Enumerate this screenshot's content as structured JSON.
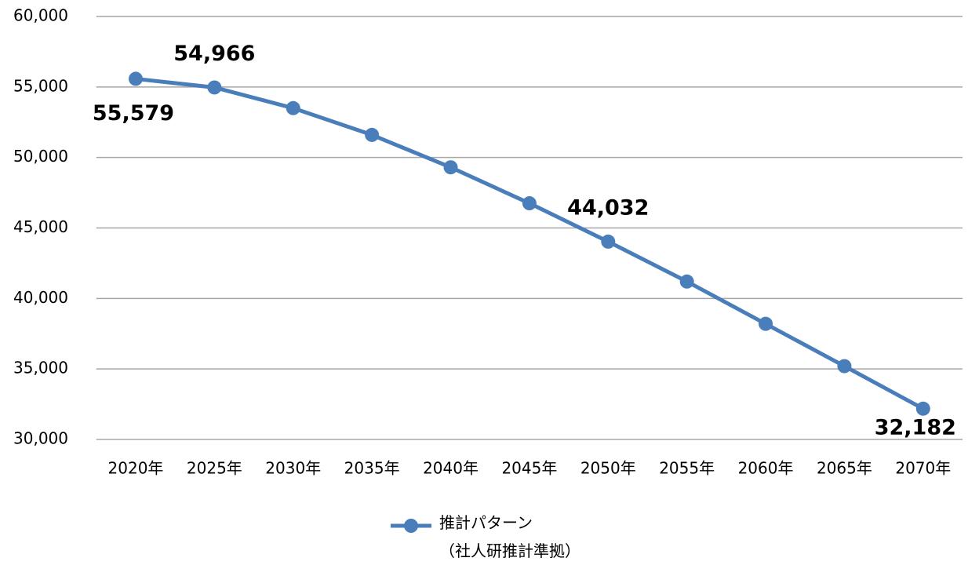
{
  "chart_data": {
    "type": "line",
    "categories": [
      "2020年",
      "2025年",
      "2030年",
      "2035年",
      "2040年",
      "2045年",
      "2050年",
      "2055年",
      "2060年",
      "2065年",
      "2070年"
    ],
    "series": [
      {
        "name": "推計パターン\n（社人研推計準拠）",
        "color": "#4a7ebb",
        "values": [
          55579,
          54966,
          53500,
          51600,
          49300,
          46750,
          44032,
          41200,
          38200,
          35200,
          32182
        ],
        "value_labels": [
          "55,579",
          "54,966",
          null,
          null,
          null,
          null,
          "44,032",
          null,
          null,
          null,
          "32,182"
        ]
      }
    ],
    "ylim": [
      30000,
      60000
    ],
    "yticks": [
      {
        "value": 30000,
        "label": "30,000"
      },
      {
        "value": 35000,
        "label": "35,000"
      },
      {
        "value": 40000,
        "label": "40,000"
      },
      {
        "value": 45000,
        "label": "45,000"
      },
      {
        "value": 50000,
        "label": "50,000"
      },
      {
        "value": 55000,
        "label": "55,000"
      },
      {
        "value": 60000,
        "label": "60,000"
      }
    ],
    "grid": true,
    "legend": "bottom"
  }
}
